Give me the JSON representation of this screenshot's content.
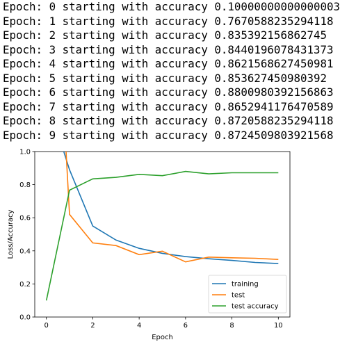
{
  "log_lines": [
    "Epoch: 0 starting with accuracy 0.10000000000000003",
    "Epoch: 1 starting with accuracy 0.7670588235294118",
    "Epoch: 2 starting with accuracy 0.835392156862745",
    "Epoch: 3 starting with accuracy 0.8440196078431373",
    "Epoch: 4 starting with accuracy 0.8621568627450981",
    "Epoch: 5 starting with accuracy 0.853627450980392",
    "Epoch: 6 starting with accuracy 0.8800980392156863",
    "Epoch: 7 starting with accuracy 0.8652941176470589",
    "Epoch: 8 starting with accuracy 0.8720588235294118",
    "Epoch: 9 starting with accuracy 0.8724509803921568"
  ],
  "chart_data": {
    "type": "line",
    "title": "",
    "xlabel": "Epoch",
    "ylabel": "Loss/Accuracy",
    "xlim": [
      -0.5,
      10.5
    ],
    "ylim": [
      0.0,
      1.0
    ],
    "xticks": [
      0,
      2,
      4,
      6,
      8,
      10
    ],
    "yticks": [
      0.0,
      0.2,
      0.4,
      0.6,
      0.8,
      1.0
    ],
    "ytick_labels": [
      "0.0",
      "0.2",
      "0.4",
      "0.6",
      "0.8",
      "1.0"
    ],
    "grid": false,
    "legend_position": "bottom-right",
    "series": [
      {
        "name": "training",
        "color": "#1f77b4",
        "x": [
          0.75,
          1,
          2,
          3,
          4,
          5,
          6,
          7,
          8,
          9,
          10
        ],
        "y": [
          1.0,
          0.89,
          0.55,
          0.465,
          0.415,
          0.385,
          0.365,
          0.352,
          0.342,
          0.33,
          0.323
        ]
      },
      {
        "name": "test",
        "color": "#ff7f0e",
        "x": [
          0.85,
          1,
          2,
          3,
          4,
          5,
          6,
          7,
          8,
          9,
          10
        ],
        "y": [
          1.0,
          0.62,
          0.448,
          0.432,
          0.377,
          0.398,
          0.333,
          0.362,
          0.358,
          0.355,
          0.348
        ]
      },
      {
        "name": "test accuracy",
        "color": "#2ca02c",
        "x": [
          0,
          1,
          2,
          3,
          4,
          5,
          6,
          7,
          8,
          9,
          10
        ],
        "y": [
          0.1,
          0.767,
          0.835,
          0.844,
          0.862,
          0.854,
          0.88,
          0.865,
          0.872,
          0.872,
          0.872
        ]
      }
    ]
  }
}
